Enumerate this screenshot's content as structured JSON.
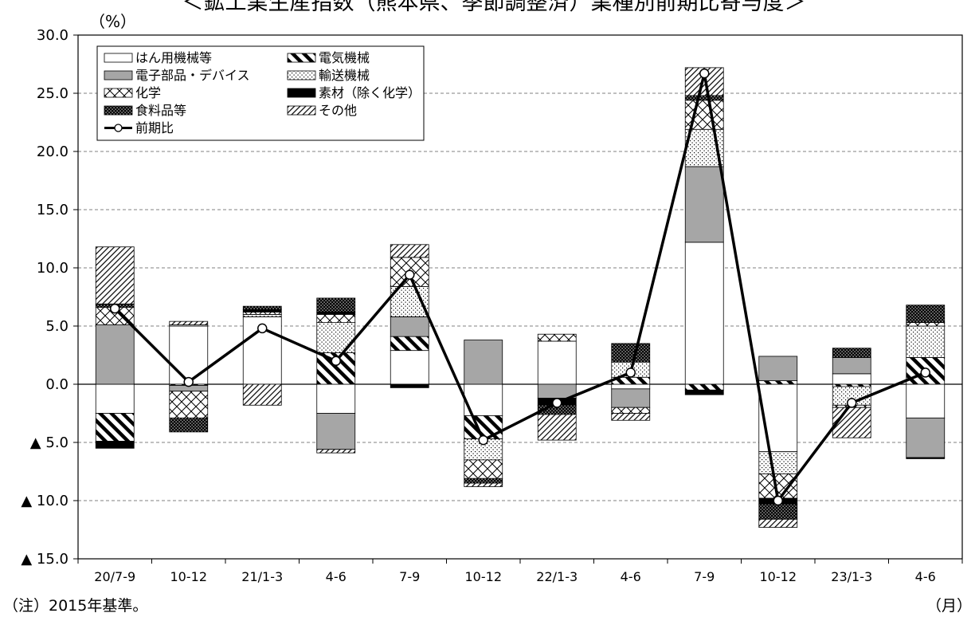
{
  "title": "＜鉱工業生産指数（熊本県、季節調整済）業種別前期比寄与度＞",
  "y_unit": "（%）",
  "x_unit": "（月）",
  "note": "（注）2015年基準。",
  "colors": {
    "line": "#000000",
    "solid_gray": "#a6a6a6",
    "grid": "#808080"
  },
  "chart_data": {
    "type": "bar",
    "stacked": true,
    "title": "＜鉱工業生産指数（熊本県、季節調整済）業種別前期比寄与度＞",
    "xlabel": "（月）",
    "ylabel": "（%）",
    "ylim": [
      -15,
      30
    ],
    "ytick_values": [
      30,
      25,
      20,
      15,
      10,
      5,
      0,
      -5,
      -10,
      -15
    ],
    "ytick_labels": [
      "30.0",
      "25.0",
      "20.0",
      "15.0",
      "10.0",
      "5.0",
      "0.0",
      "▲ 5.0",
      "▲ 10.0",
      "▲ 15.0"
    ],
    "grid": "horizontal dashed",
    "legend_position": "top-left",
    "categories": [
      "20/7-9",
      "10-12",
      "21/1-3",
      "4-6",
      "7-9",
      "10-12",
      "22/1-3",
      "4-6",
      "7-9",
      "10-12",
      "23/1-3",
      "4-6"
    ],
    "series": [
      {
        "name": "はん用機械等",
        "pattern": "white",
        "values": [
          -2.5,
          5.0,
          5.8,
          -2.5,
          2.9,
          -2.7,
          3.7,
          -0.4,
          12.2,
          -5.8,
          0.9,
          -2.9
        ]
      },
      {
        "name": "電気機械",
        "pattern": "diag-thick",
        "values": [
          -2.4,
          -0.1,
          0.0,
          2.7,
          1.2,
          -2.0,
          0.0,
          0.6,
          -0.5,
          0.3,
          -0.2,
          2.3
        ]
      },
      {
        "name": "電子部品・デバイス",
        "pattern": "gray",
        "values": [
          5.1,
          -0.5,
          0.0,
          -3.1,
          1.7,
          3.8,
          -1.2,
          -1.6,
          6.5,
          2.1,
          1.4,
          -3.4
        ]
      },
      {
        "name": "輸送機械",
        "pattern": "dots",
        "values": [
          0.0,
          0.1,
          0.2,
          2.6,
          2.6,
          -1.8,
          0.0,
          1.3,
          3.2,
          -1.9,
          -1.6,
          2.7
        ]
      },
      {
        "name": "化学",
        "pattern": "crosshatch",
        "values": [
          1.5,
          -2.3,
          0.2,
          0.7,
          2.5,
          -1.6,
          0.6,
          -0.5,
          2.5,
          -2.1,
          -0.2,
          0.3
        ]
      },
      {
        "name": "素材（除く化学）",
        "pattern": "black",
        "values": [
          -0.6,
          0.0,
          0.2,
          0.2,
          -0.3,
          0.0,
          -0.6,
          0.0,
          -0.4,
          -0.5,
          0.0,
          -0.1
        ]
      },
      {
        "name": "食料品等",
        "pattern": "dense-dots",
        "values": [
          0.3,
          -1.2,
          0.3,
          1.2,
          0.0,
          -0.4,
          -0.8,
          1.6,
          0.4,
          -1.3,
          0.8,
          1.5
        ]
      },
      {
        "name": "その他",
        "pattern": "diag-thin",
        "values": [
          4.9,
          0.3,
          -1.8,
          -0.3,
          1.1,
          -0.3,
          -2.2,
          -0.6,
          2.4,
          -0.7,
          -2.6,
          0.0
        ]
      }
    ],
    "line": {
      "name": "前期比",
      "values": [
        6.5,
        0.2,
        4.8,
        2.0,
        9.4,
        -4.8,
        -1.6,
        1.0,
        26.7,
        -10.0,
        -1.6,
        1.0
      ]
    }
  }
}
